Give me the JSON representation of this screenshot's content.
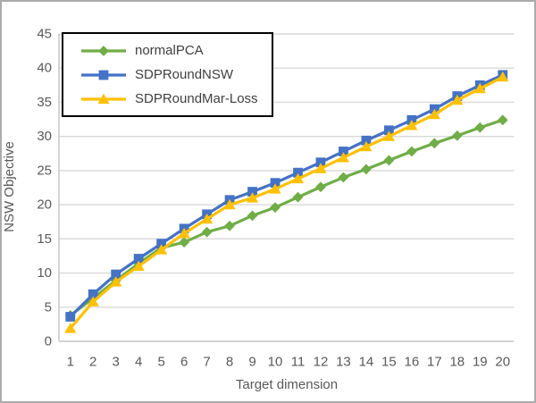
{
  "chart_data": {
    "type": "line",
    "title": "",
    "xlabel": "Target dimension",
    "ylabel": "NSW Objective",
    "categories": [
      1,
      2,
      3,
      4,
      5,
      6,
      7,
      8,
      9,
      10,
      11,
      12,
      13,
      14,
      15,
      16,
      17,
      18,
      19,
      20
    ],
    "ylim": [
      0,
      45
    ],
    "yticks": [
      0,
      5,
      10,
      15,
      20,
      25,
      30,
      35,
      40,
      45
    ],
    "grid": true,
    "legend_position": "top-left-inside",
    "series": [
      {
        "name": "normalPCA",
        "color": "#70AD47",
        "marker": "diamond",
        "values": [
          3.8,
          6.3,
          8.9,
          11.4,
          13.7,
          14.5,
          16.0,
          16.9,
          18.4,
          19.6,
          21.1,
          22.6,
          24.0,
          25.2,
          26.5,
          27.8,
          29.0,
          30.1,
          31.3,
          32.4
        ]
      },
      {
        "name": "SDPRoundNSW",
        "color": "#4472C4",
        "marker": "square",
        "values": [
          3.6,
          6.9,
          9.8,
          12.1,
          14.3,
          16.5,
          18.6,
          20.7,
          21.9,
          23.2,
          24.7,
          26.2,
          27.8,
          29.4,
          30.9,
          32.4,
          34.0,
          35.9,
          37.5,
          39.0
        ]
      },
      {
        "name": "SDPRoundMar-Loss",
        "color": "#FFC000",
        "marker": "triangle",
        "values": [
          1.9,
          5.8,
          8.7,
          11.0,
          13.4,
          15.8,
          17.9,
          20.0,
          21.0,
          22.3,
          23.8,
          25.3,
          26.9,
          28.5,
          30.0,
          31.6,
          33.2,
          35.3,
          37.0,
          38.7
        ]
      }
    ]
  },
  "colors": {
    "gridline": "#D9D9D9",
    "axis_line": "#C6C6C6",
    "tick_text": "#595959",
    "axis_title_text": "#595959",
    "legend_text": "#404040",
    "legend_border": "#000000",
    "chart_border": "#ABABAB",
    "background": "#FFFFFF"
  }
}
